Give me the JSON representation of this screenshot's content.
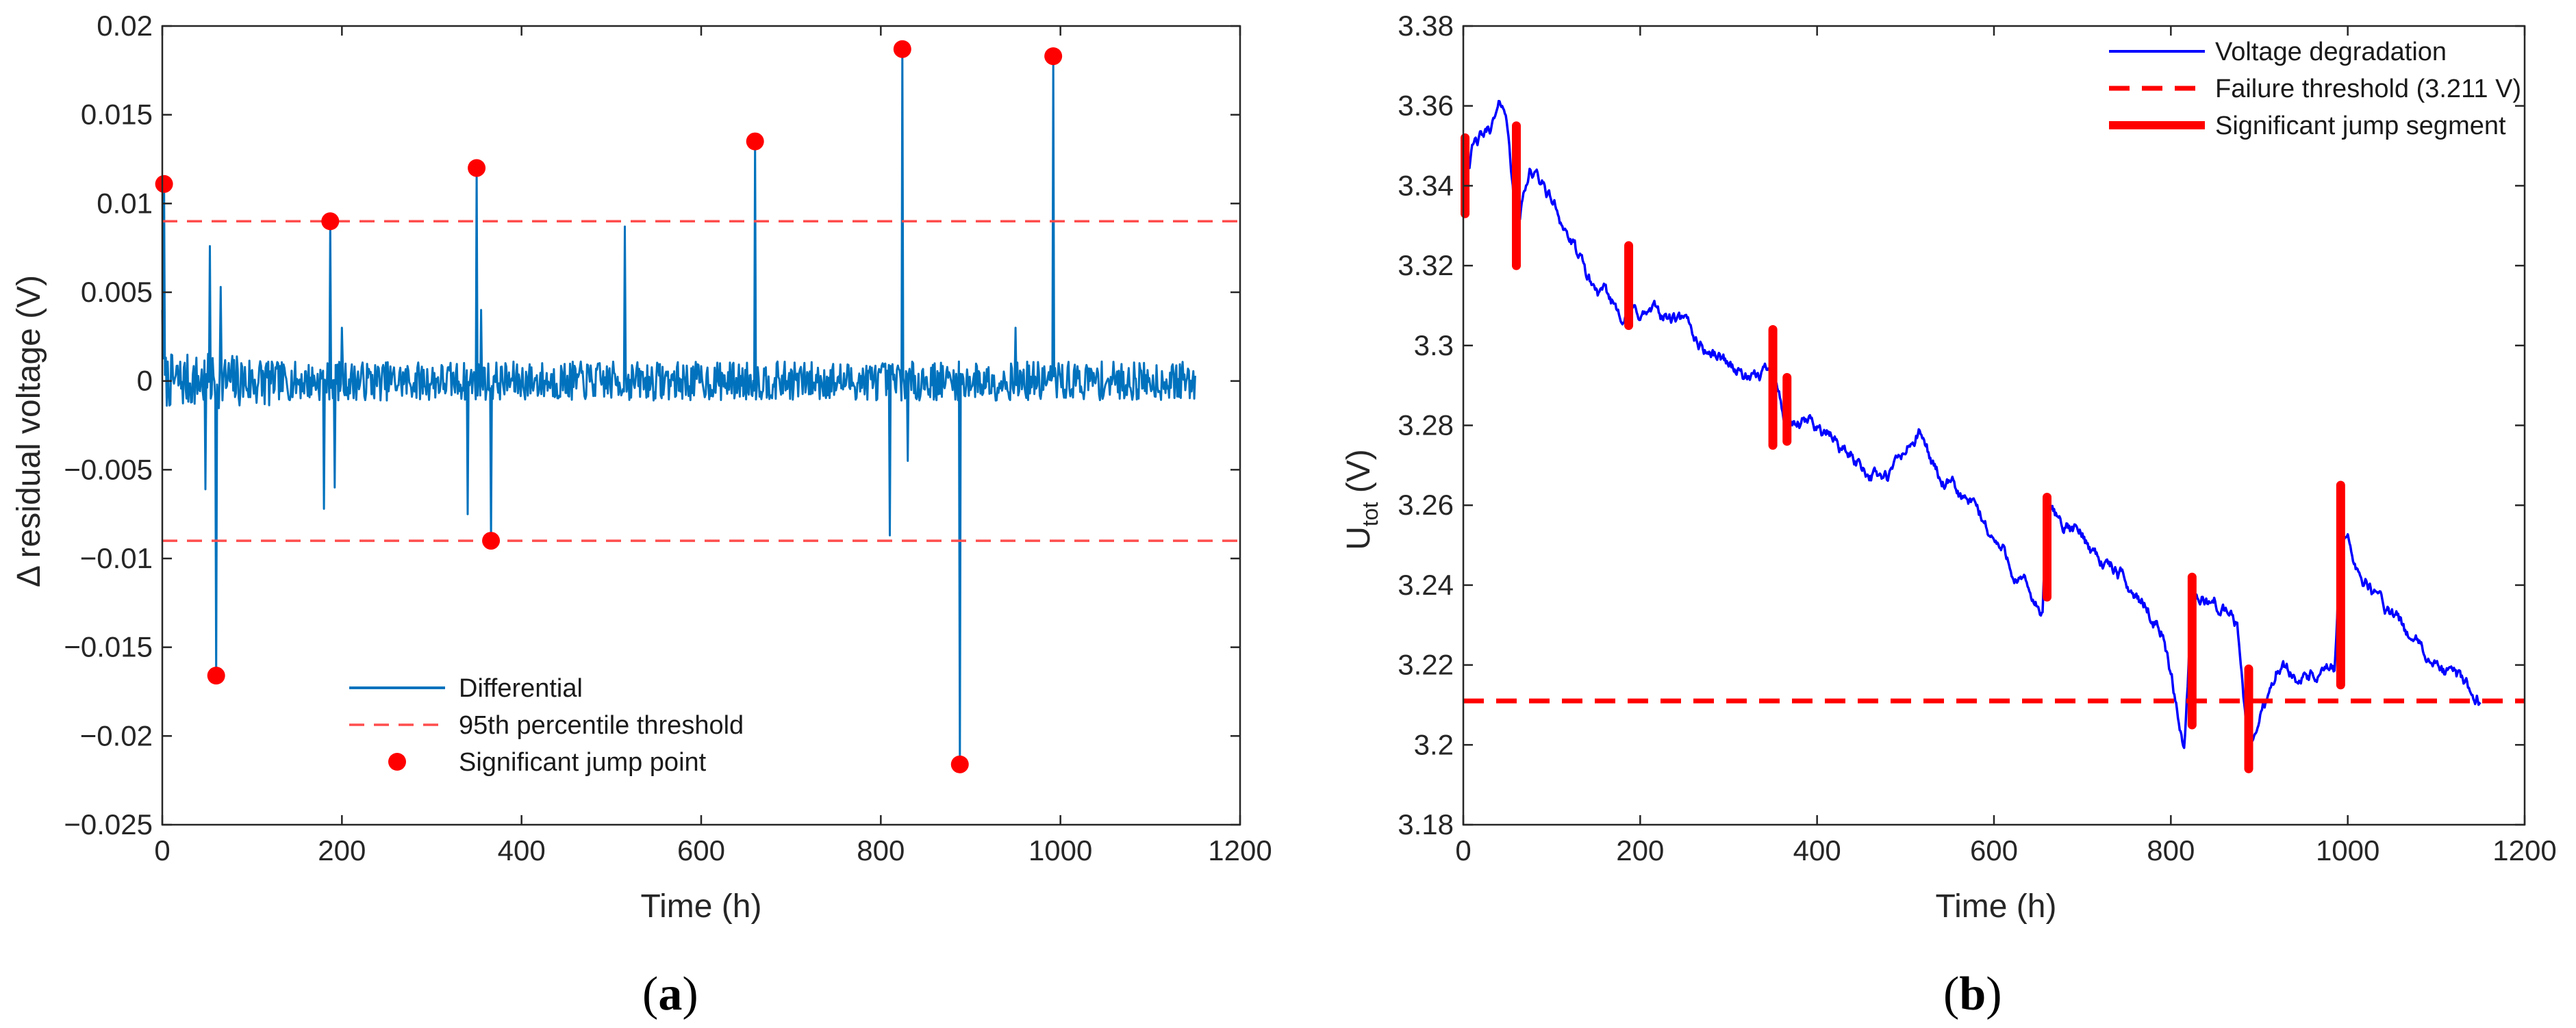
{
  "chart_data": [
    {
      "panel": "a",
      "type": "line",
      "caption": {
        "open": "(",
        "letter": "a",
        "close": ")"
      },
      "xlabel": "Time (h)",
      "ylabel": "Δ residual voltage (V)",
      "xlim": [
        0,
        1200
      ],
      "ylim": [
        -0.025,
        0.02
      ],
      "xticks": [
        "0",
        "200",
        "400",
        "600",
        "800",
        "1000",
        "1200"
      ],
      "yticks": [
        "-0.025",
        "-0.02",
        "-0.015",
        "-0.01",
        "-0.005",
        "0",
        "0.005",
        "0.01",
        "0.015",
        "0.02"
      ],
      "grid": false,
      "legend_position": "bottom-center",
      "legend": [
        "Differential",
        "95th percentile threshold",
        "Significant jump point"
      ],
      "colors": {
        "series": "#0072BD",
        "threshold": "#FF4D4D",
        "marker": "#FF0000",
        "axis": "#262626"
      },
      "thresholds": [
        0.009,
        -0.009
      ],
      "jump_points": {
        "x": [
          2,
          60,
          187,
          350,
          366,
          660,
          824,
          888,
          992
        ],
        "y": [
          0.0111,
          -0.0166,
          0.009,
          0.012,
          -0.009,
          0.0135,
          0.0187,
          -0.0216,
          0.0183
        ]
      },
      "spikes": {
        "x": [
          2,
          48,
          53,
          60,
          65,
          180,
          187,
          192,
          200,
          340,
          350,
          355,
          366,
          515,
          660,
          810,
          824,
          830,
          888,
          950,
          992
        ],
        "y": [
          0.0111,
          -0.0061,
          0.0076,
          -0.0166,
          0.0053,
          -0.0072,
          0.009,
          -0.006,
          0.003,
          -0.0075,
          0.012,
          0.004,
          -0.009,
          0.0087,
          0.0135,
          -0.0087,
          0.0187,
          -0.0045,
          -0.0216,
          0.003,
          0.0183
        ]
      },
      "x_end": 1150,
      "noise_amplitude": 0.0011
    },
    {
      "panel": "b",
      "type": "line",
      "caption": {
        "open": "(",
        "letter": "b",
        "close": ")"
      },
      "xlabel": "Time (h)",
      "ylabel_main": "U",
      "ylabel_sub": "tot",
      "ylabel_unit": " (V)",
      "xlim": [
        0,
        1200
      ],
      "ylim": [
        3.18,
        3.38
      ],
      "xticks": [
        "0",
        "200",
        "400",
        "600",
        "800",
        "1000",
        "1200"
      ],
      "yticks": [
        "3.18",
        "3.2",
        "3.22",
        "3.24",
        "3.26",
        "3.28",
        "3.3",
        "3.32",
        "3.34",
        "3.36",
        "3.38"
      ],
      "grid": false,
      "legend_position": "top-right",
      "legend": [
        "Voltage degradation",
        "Failure threshold (3.211 V)",
        "Significant jump segment"
      ],
      "colors": {
        "series": "#0000FF",
        "threshold": "#FF0000",
        "segment": "#FF0000",
        "axis": "#262626"
      },
      "failure_threshold": 3.211,
      "trend": {
        "x": [
          0,
          10,
          25,
          45,
          52,
          60,
          75,
          95,
          115,
          140,
          165,
          187,
          210,
          240,
          270,
          300,
          330,
          350,
          366,
          400,
          440,
          480,
          515,
          540,
          580,
          620,
          655,
          660,
          700,
          750,
          790,
          815,
          824,
          850,
          875,
          888,
          920,
          960,
          985,
          992,
          1010,
          1050,
          1100,
          1150
        ],
        "y": [
          3.343,
          3.35,
          3.352,
          3.36,
          3.352,
          3.328,
          3.345,
          3.338,
          3.33,
          3.316,
          3.31,
          3.308,
          3.308,
          3.306,
          3.3,
          3.296,
          3.29,
          3.296,
          3.279,
          3.28,
          3.272,
          3.266,
          3.278,
          3.266,
          3.258,
          3.245,
          3.232,
          3.258,
          3.252,
          3.24,
          3.23,
          3.2,
          3.236,
          3.236,
          3.23,
          3.198,
          3.22,
          3.217,
          3.217,
          3.252,
          3.245,
          3.232,
          3.219,
          3.212
        ]
      },
      "jump_segments": [
        {
          "x": 2,
          "y0": 3.333,
          "y1": 3.352
        },
        {
          "x": 60,
          "y0": 3.32,
          "y1": 3.355
        },
        {
          "x": 187,
          "y0": 3.305,
          "y1": 3.325
        },
        {
          "x": 350,
          "y0": 3.275,
          "y1": 3.304
        },
        {
          "x": 366,
          "y0": 3.276,
          "y1": 3.292
        },
        {
          "x": 660,
          "y0": 3.237,
          "y1": 3.262
        },
        {
          "x": 824,
          "y0": 3.205,
          "y1": 3.242
        },
        {
          "x": 888,
          "y0": 3.194,
          "y1": 3.219
        },
        {
          "x": 992,
          "y0": 3.215,
          "y1": 3.265
        }
      ],
      "noise_amplitude": 0.0025
    }
  ]
}
